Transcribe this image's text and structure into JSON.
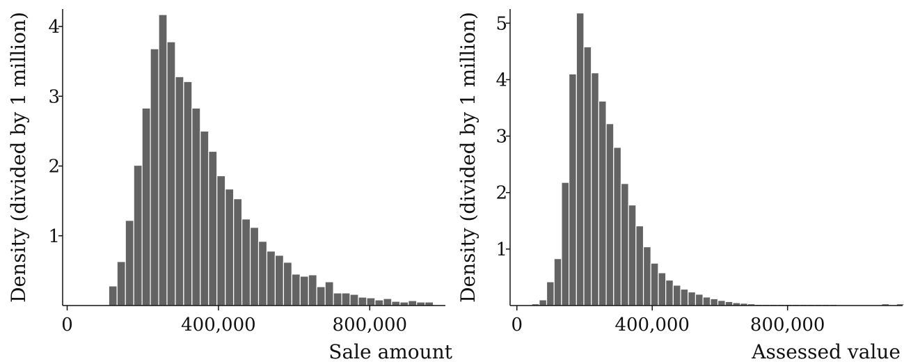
{
  "chart_data": [
    {
      "type": "bar",
      "title": "",
      "xlabel": "Sale amount",
      "ylabel": "Density (divided by 1 million)",
      "xlim": [
        -12000,
        1000000
      ],
      "ylim": [
        0,
        4.25
      ],
      "bin_width": 22000,
      "grid": false,
      "x_ticks": [
        {
          "value": 0,
          "label": "0"
        },
        {
          "value": 400000,
          "label": "400,000"
        },
        {
          "value": 800000,
          "label": "800,000"
        }
      ],
      "y_ticks": [
        {
          "value": 1,
          "label": "1"
        },
        {
          "value": 2,
          "label": "2"
        },
        {
          "value": 3,
          "label": "3"
        },
        {
          "value": 4,
          "label": "4"
        }
      ],
      "bin_starts": [
        110000,
        132000,
        154000,
        176000,
        198000,
        220000,
        242000,
        264000,
        286000,
        308000,
        330000,
        352000,
        374000,
        396000,
        418000,
        440000,
        462000,
        484000,
        506000,
        528000,
        550000,
        572000,
        594000,
        616000,
        638000,
        660000,
        682000,
        704000,
        726000,
        748000,
        770000,
        792000,
        814000,
        836000,
        858000,
        880000,
        902000,
        924000,
        946000
      ],
      "values": [
        0.28,
        0.63,
        1.22,
        2.01,
        2.83,
        3.68,
        4.17,
        3.78,
        3.28,
        3.21,
        2.83,
        2.5,
        2.21,
        1.86,
        1.67,
        1.53,
        1.24,
        1.12,
        0.92,
        0.78,
        0.72,
        0.62,
        0.45,
        0.42,
        0.44,
        0.27,
        0.34,
        0.18,
        0.18,
        0.16,
        0.12,
        0.11,
        0.08,
        0.1,
        0.06,
        0.05,
        0.07,
        0.05,
        0.05
      ]
    },
    {
      "type": "bar",
      "title": "",
      "xlabel": "Assessed value",
      "ylabel": "Density (divided by 1 million)",
      "xlim": [
        -20000,
        1140000
      ],
      "ylim": [
        0,
        5.25
      ],
      "bin_width": 22000,
      "grid": false,
      "x_ticks": [
        {
          "value": 0,
          "label": "0"
        },
        {
          "value": 400000,
          "label": "400,000"
        },
        {
          "value": 800000,
          "label": "800,000"
        }
      ],
      "y_ticks": [
        {
          "value": 1,
          "label": "1"
        },
        {
          "value": 2,
          "label": "2"
        },
        {
          "value": 3,
          "label": "3"
        },
        {
          "value": 4,
          "label": "4"
        },
        {
          "value": 5,
          "label": "5"
        }
      ],
      "bin_starts": [
        44000,
        66000,
        88000,
        110000,
        132000,
        154000,
        176000,
        198000,
        220000,
        242000,
        264000,
        286000,
        308000,
        330000,
        352000,
        374000,
        396000,
        418000,
        440000,
        462000,
        484000,
        506000,
        528000,
        550000,
        572000,
        594000,
        616000,
        638000,
        660000,
        682000,
        704000,
        726000,
        748000,
        770000,
        792000,
        814000,
        836000,
        858000,
        880000,
        902000,
        924000,
        946000,
        968000,
        990000,
        1012000,
        1034000,
        1056000,
        1078000,
        1100000,
        1122000
      ],
      "values": [
        0.03,
        0.1,
        0.42,
        0.83,
        2.18,
        4.1,
        5.18,
        4.58,
        4.12,
        3.62,
        3.22,
        2.8,
        2.16,
        1.78,
        1.41,
        1.04,
        0.75,
        0.58,
        0.45,
        0.36,
        0.29,
        0.24,
        0.2,
        0.15,
        0.12,
        0.09,
        0.07,
        0.05,
        0.04,
        0.03,
        0.02,
        0.02,
        0.02,
        0.02,
        0.02,
        0.02,
        0.02,
        0.02,
        0.02,
        0.02,
        0.02,
        0.01,
        0.01,
        0.0,
        0.0,
        0.0,
        0.0,
        0.03,
        0.0,
        0.03
      ]
    }
  ]
}
